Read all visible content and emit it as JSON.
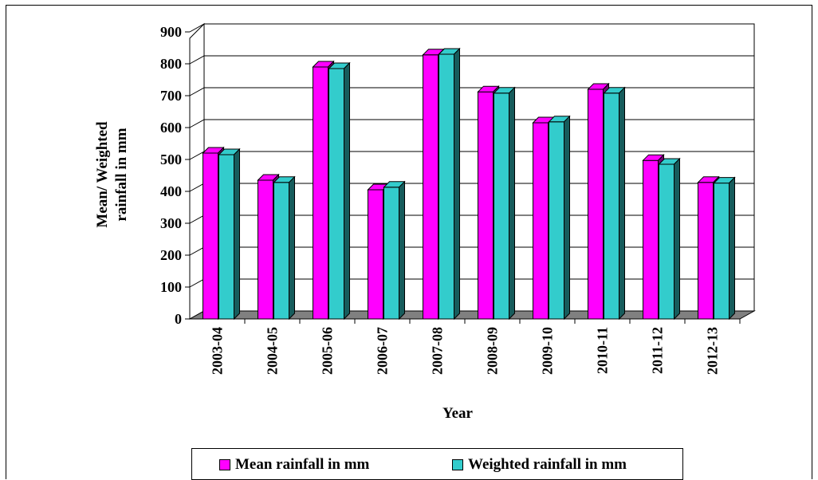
{
  "chart_data": {
    "type": "bar",
    "title": "",
    "xlabel": "Year",
    "ylabel": "Mean/ Weighted rainfall in mm",
    "ylabel_lines": [
      "Mean/ Weighted",
      "rainfall in mm"
    ],
    "ylim": [
      0,
      900
    ],
    "yticks": [
      0,
      100,
      200,
      300,
      400,
      500,
      600,
      700,
      800,
      900
    ],
    "grid": true,
    "legend_position": "bottom",
    "categories": [
      "2003-04",
      "2004-05",
      "2005-06",
      "2006-07",
      "2007-08",
      "2008-09",
      "2009-10",
      "2010-11",
      "2011-12",
      "2012-13"
    ],
    "series": [
      {
        "name": "Mean rainfall in mm",
        "color": "#ff00ff",
        "values": [
          520,
          435,
          790,
          405,
          828,
          712,
          615,
          720,
          497,
          428
        ]
      },
      {
        "name": "Weighted rainfall in mm",
        "color": "#33cccc",
        "values": [
          515,
          428,
          785,
          413,
          830,
          708,
          618,
          708,
          485,
          426
        ]
      }
    ]
  }
}
